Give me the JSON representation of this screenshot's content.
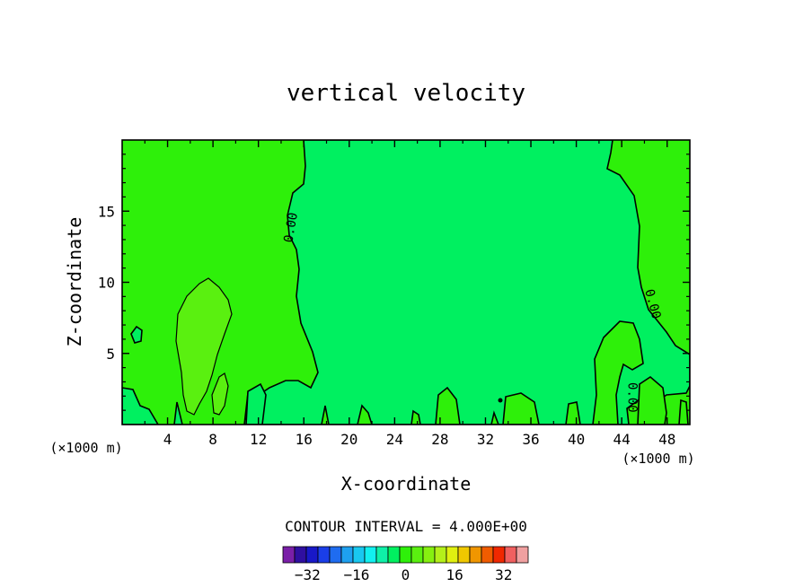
{
  "chart_data": {
    "type": "heatmap",
    "title": "vertical velocity",
    "xlabel": "X-coordinate",
    "ylabel": "Z-coordinate",
    "x_unit": "(×1000 m)",
    "x_unit_right": "(×1000 m)",
    "xlim": [
      0,
      50
    ],
    "ylim": [
      0,
      20
    ],
    "xticks": [
      4,
      8,
      12,
      16,
      20,
      24,
      28,
      32,
      36,
      40,
      44,
      48
    ],
    "yticks": [
      5,
      10,
      15
    ],
    "contour_interval_text": "CONTOUR INTERVAL = 4.000E+00",
    "contour_labels": [
      {
        "text": "0.00",
        "x": 15.2,
        "y": 13.8,
        "rotate": -80
      },
      {
        "text": "0.00",
        "x": 46.4,
        "y": 8.4,
        "rotate": 75
      },
      {
        "text": "0.00",
        "x": 44.6,
        "y": 1.9,
        "rotate": 90
      }
    ],
    "colorbar": {
      "levels": [
        -40,
        -36,
        -32,
        -28,
        -24,
        -20,
        -16,
        -12,
        -8,
        -4,
        0,
        4,
        8,
        12,
        16,
        20,
        24,
        28,
        32,
        36,
        40
      ],
      "colors": [
        "#7a1fa8",
        "#2f0fa0",
        "#1818c8",
        "#1a3ee8",
        "#1f6cf0",
        "#1ea0f0",
        "#19c8f0",
        "#12f0f0",
        "#0ff0a8",
        "#00f060",
        "#2ef00a",
        "#5af010",
        "#86f010",
        "#b4f01a",
        "#e0f010",
        "#f0c800",
        "#f09600",
        "#f05c00",
        "#f02800",
        "#f06060",
        "#f0a0a0"
      ],
      "tick_labels": [
        "−32",
        "−16",
        "0",
        "16",
        "32"
      ],
      "tick_values": [
        -32,
        -16,
        0,
        16,
        32
      ]
    },
    "regions": [
      {
        "name": "negative-0-to-minus4",
        "color": "#00f060"
      },
      {
        "name": "positive-0-to-4",
        "color": "#2ef00a"
      },
      {
        "name": "positive-4-to-8",
        "color": "#5af010"
      }
    ]
  }
}
